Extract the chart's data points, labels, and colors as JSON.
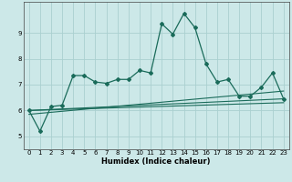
{
  "xlabel": "Humidex (Indice chaleur)",
  "background_color": "#cce8e8",
  "line_color": "#1a6b5a",
  "grid_color": "#aad0d0",
  "xlim": [
    -0.5,
    23.5
  ],
  "ylim": [
    4.5,
    10.2
  ],
  "xticks": [
    0,
    1,
    2,
    3,
    4,
    5,
    6,
    7,
    8,
    9,
    10,
    11,
    12,
    13,
    14,
    15,
    16,
    17,
    18,
    19,
    20,
    21,
    22,
    23
  ],
  "yticks": [
    5,
    6,
    7,
    8,
    9
  ],
  "main_line_x": [
    0,
    1,
    2,
    3,
    4,
    5,
    6,
    7,
    8,
    9,
    10,
    11,
    12,
    13,
    14,
    15,
    16,
    17,
    18,
    19,
    20,
    21,
    22,
    23
  ],
  "main_line_y": [
    6.0,
    5.2,
    6.15,
    6.2,
    7.35,
    7.35,
    7.1,
    7.05,
    7.2,
    7.2,
    7.55,
    7.45,
    9.35,
    8.95,
    9.75,
    9.2,
    7.8,
    7.1,
    7.2,
    6.55,
    6.55,
    6.9,
    7.45,
    6.45
  ],
  "trend_line1_x": [
    0,
    23
  ],
  "trend_line1_y": [
    6.0,
    6.45
  ],
  "trend_line2_x": [
    0,
    23
  ],
  "trend_line2_y": [
    6.0,
    6.3
  ],
  "trend_line3_x": [
    0,
    23
  ],
  "trend_line3_y": [
    5.85,
    6.75
  ]
}
